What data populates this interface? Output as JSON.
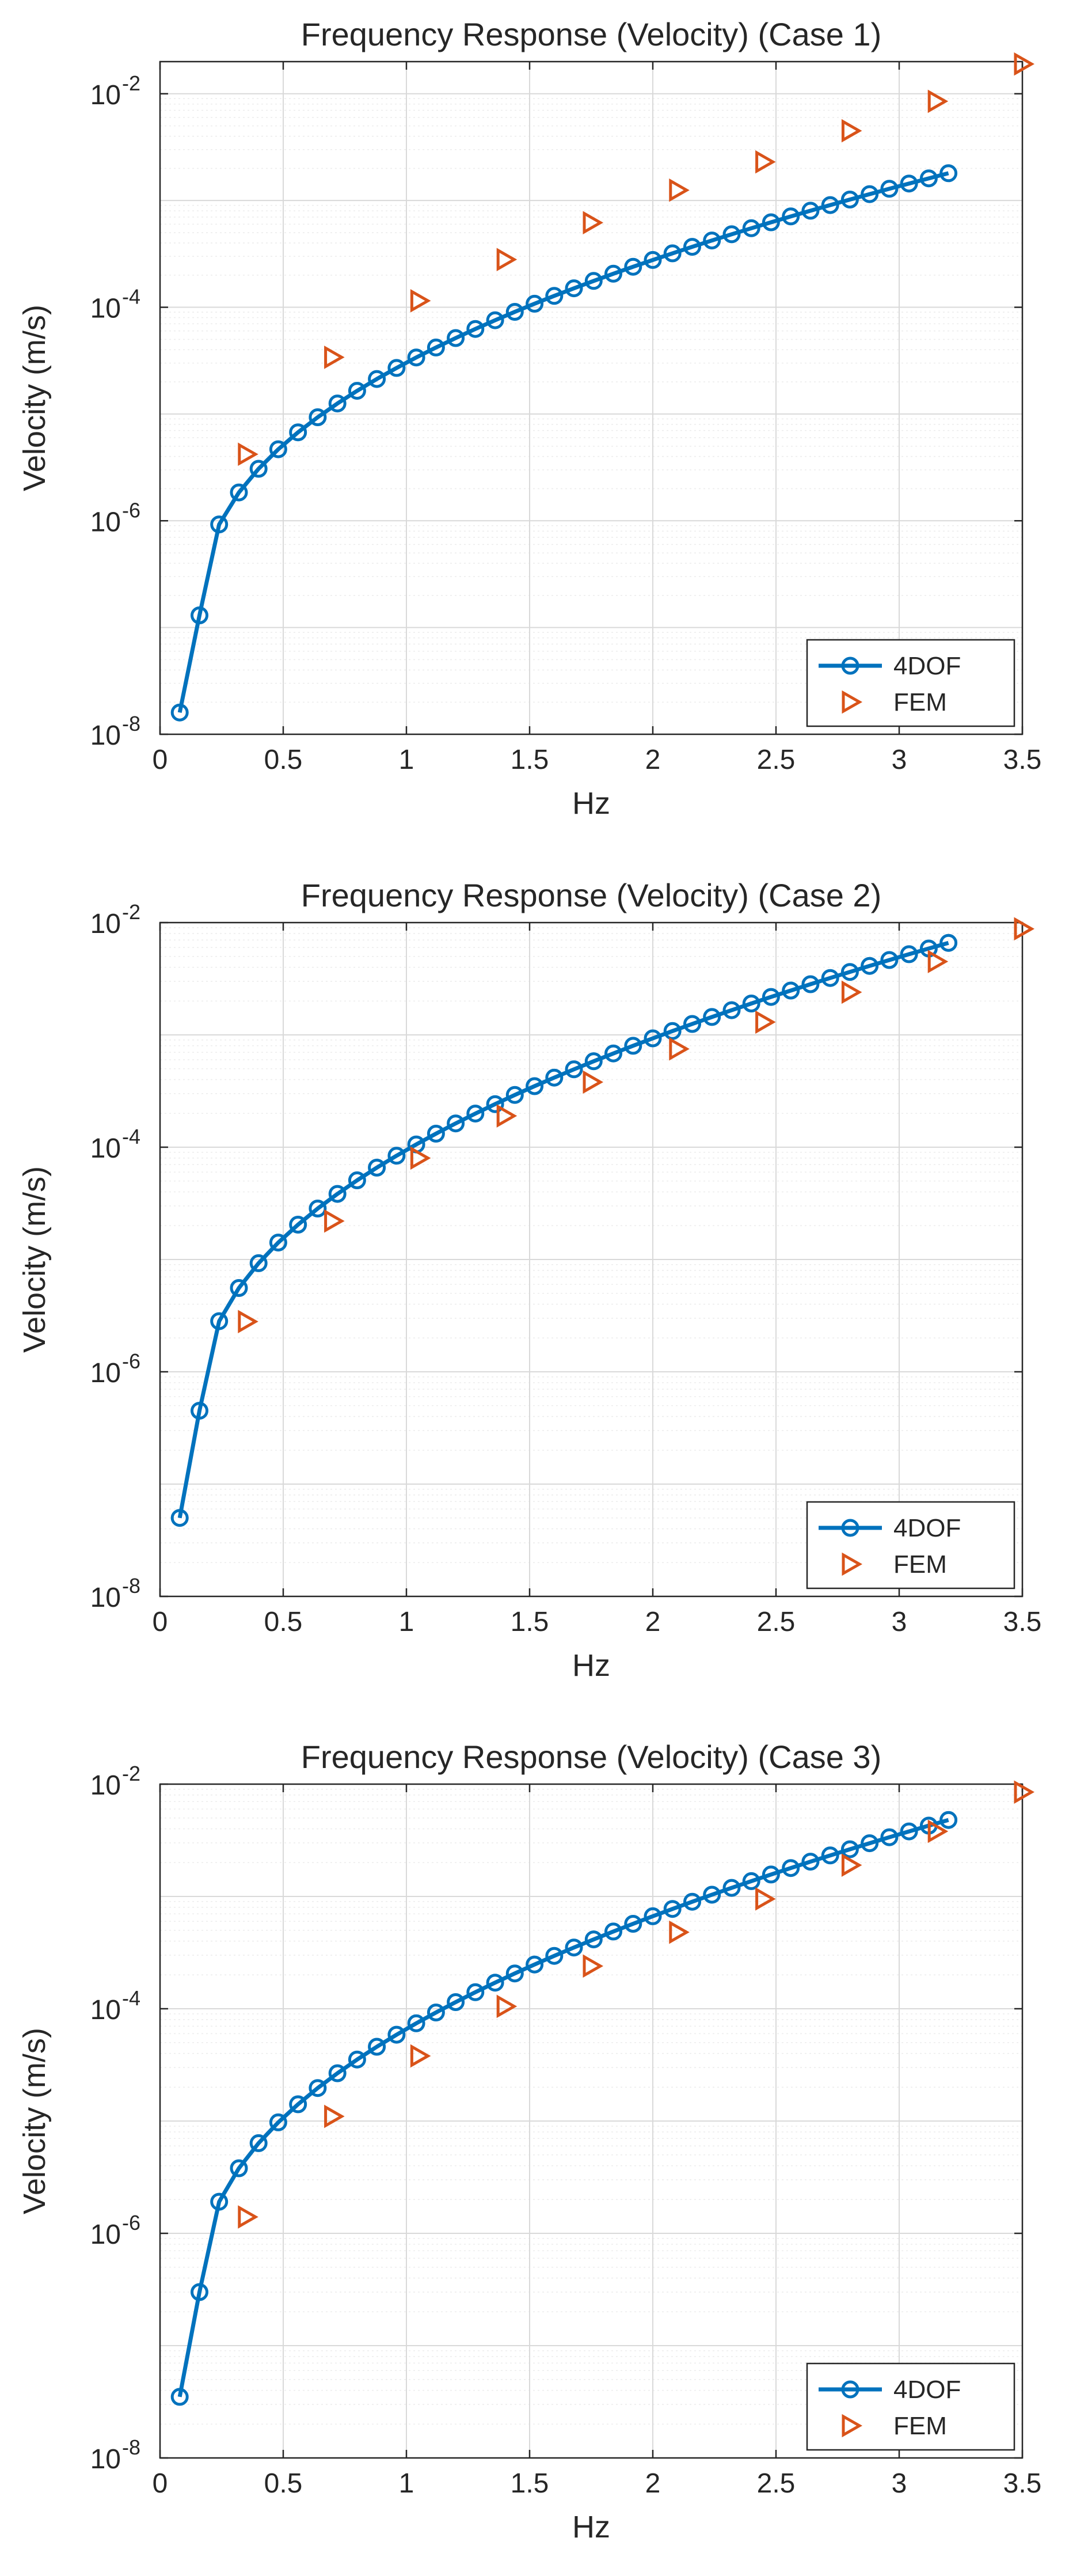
{
  "colors": {
    "line": "#0072BD",
    "fem": "#D95319",
    "grid_major": "#d9d9d9",
    "grid_minor": "#ececec",
    "axis": "#262626"
  },
  "chart_data": [
    {
      "type": "line",
      "title": "Frequency Response (Velocity) (Case 1)",
      "xlabel": "Hz",
      "ylabel": "Velocity (m/s)",
      "xlim": [
        0,
        3.5
      ],
      "ylim": [
        1e-08,
        0.02
      ],
      "yscale": "log",
      "grid": true,
      "legend_position": "bottom-right",
      "xticks": [
        "0",
        "0.5",
        "1",
        "1.5",
        "2",
        "2.5",
        "3",
        "3.5"
      ],
      "yticks": [
        {
          "base": "10",
          "exp": "-8"
        },
        {
          "base": "10",
          "exp": "-6"
        },
        {
          "base": "10",
          "exp": "-4"
        },
        {
          "base": "10",
          "exp": "-2"
        }
      ],
      "series": [
        {
          "name": "4DOF",
          "style": "line-circle",
          "x0": 0.08,
          "dx": 0.08,
          "n": 40,
          "y_first": 1.6e-08,
          "y_second": 1.3e-07,
          "y_last": 0.0018,
          "exponent": 2.3
        },
        {
          "name": "FEM",
          "style": "triangle",
          "x": [
            0.35,
            0.7,
            1.05,
            1.4,
            1.75,
            2.1,
            2.45,
            2.8,
            3.15,
            3.5
          ],
          "y": [
            4.2e-06,
            3.4e-05,
            0.000115,
            0.00028,
            0.00062,
            0.00125,
            0.0023,
            0.0045,
            0.0085,
            0.019
          ]
        }
      ]
    },
    {
      "type": "line",
      "title": "Frequency Response (Velocity) (Case 2)",
      "xlabel": "Hz",
      "ylabel": "Velocity (m/s)",
      "xlim": [
        0,
        3.5
      ],
      "ylim": [
        1e-08,
        0.01
      ],
      "yscale": "log",
      "grid": true,
      "legend_position": "bottom-right",
      "xticks": [
        "0",
        "0.5",
        "1",
        "1.5",
        "2",
        "2.5",
        "3",
        "3.5"
      ],
      "yticks": [
        {
          "base": "10",
          "exp": "-8"
        },
        {
          "base": "10",
          "exp": "-6"
        },
        {
          "base": "10",
          "exp": "-4"
        },
        {
          "base": "10",
          "exp": "-2"
        }
      ],
      "series": [
        {
          "name": "4DOF",
          "style": "line-circle",
          "x0": 0.08,
          "dx": 0.08,
          "n": 40,
          "y_first": 5e-08,
          "y_second": 4.5e-07,
          "y_last": 0.0066,
          "exponent": 2.2
        },
        {
          "name": "FEM",
          "style": "triangle",
          "x": [
            0.35,
            0.7,
            1.05,
            1.4,
            1.75,
            2.1,
            2.45,
            2.8,
            3.15,
            3.5
          ],
          "y": [
            2.8e-06,
            2.2e-05,
            8e-05,
            0.00019,
            0.00038,
            0.00075,
            0.0013,
            0.0024,
            0.0045,
            0.0088
          ]
        }
      ]
    },
    {
      "type": "line",
      "title": "Frequency Response (Velocity) (Case 3)",
      "xlabel": "Hz",
      "ylabel": "Velocity (m/s)",
      "xlim": [
        0,
        3.5
      ],
      "ylim": [
        1e-08,
        0.01
      ],
      "yscale": "log",
      "grid": true,
      "legend_position": "bottom-right",
      "xticks": [
        "0",
        "0.5",
        "1",
        "1.5",
        "2",
        "2.5",
        "3",
        "3.5"
      ],
      "yticks": [
        {
          "base": "10",
          "exp": "-8"
        },
        {
          "base": "10",
          "exp": "-6"
        },
        {
          "base": "10",
          "exp": "-4"
        },
        {
          "base": "10",
          "exp": "-2"
        }
      ],
      "series": [
        {
          "name": "4DOF",
          "style": "line-circle",
          "x0": 0.08,
          "dx": 0.08,
          "n": 40,
          "y_first": 3.5e-08,
          "y_second": 3e-07,
          "y_last": 0.0048,
          "exponent": 2.2
        },
        {
          "name": "FEM",
          "style": "triangle",
          "x": [
            0.35,
            0.7,
            1.05,
            1.4,
            1.75,
            2.1,
            2.45,
            2.8,
            3.15,
            3.5
          ],
          "y": [
            1.4e-06,
            1.1e-05,
            3.8e-05,
            0.000105,
            0.00024,
            0.00048,
            0.00095,
            0.0019,
            0.0038,
            0.0085
          ]
        }
      ]
    }
  ]
}
